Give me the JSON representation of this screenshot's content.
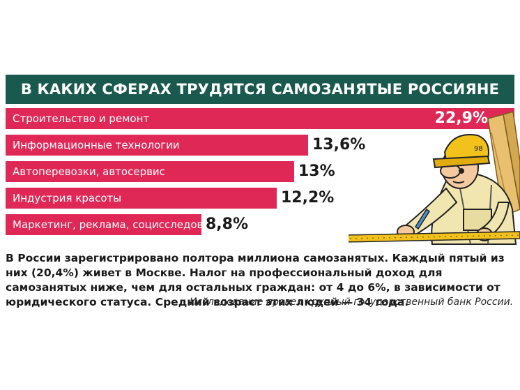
{
  "title": "В КАКИХ СФЕРАХ ТРУДЯТСЯ САМОЗАНЯТЫЕ РОССИЯНЕ",
  "colors": {
    "title_bg": "#1a5a4e",
    "bar": "#e02857",
    "text": "#1a1a1a"
  },
  "chart_data": {
    "type": "bar",
    "orientation": "horizontal",
    "title": "В КАКИХ СФЕРАХ ТРУДЯТСЯ САМОЗАНЯТЫЕ РОССИЯНЕ",
    "categories": [
      "Строительство и ремонт",
      "Информационные технологии",
      "Автоперевозки, автосервис",
      "Индустрия красоты",
      "Маркетинг, реклама, социсследования"
    ],
    "values": [
      22.9,
      13.6,
      13,
      12.2,
      8.8
    ],
    "value_labels": [
      "22,9%",
      "13,6%",
      "13%",
      "12,2%",
      "8,8%"
    ],
    "unit": "%",
    "xlim": [
      0,
      22.9
    ],
    "grid": false,
    "legend": "none"
  },
  "note": "В России зарегистрировано полтора миллиона самозанятых. Каждый пятый из них (20,4%) живет в Москве. Налог на профессиональный доход для самозанятых ниже, чем для остальных граждан: от 4 до 6%, в зависимости от юридического статуса. Средний возраст этих людей — 34 года.",
  "source": "Исследование провел крупный государственный банк России."
}
